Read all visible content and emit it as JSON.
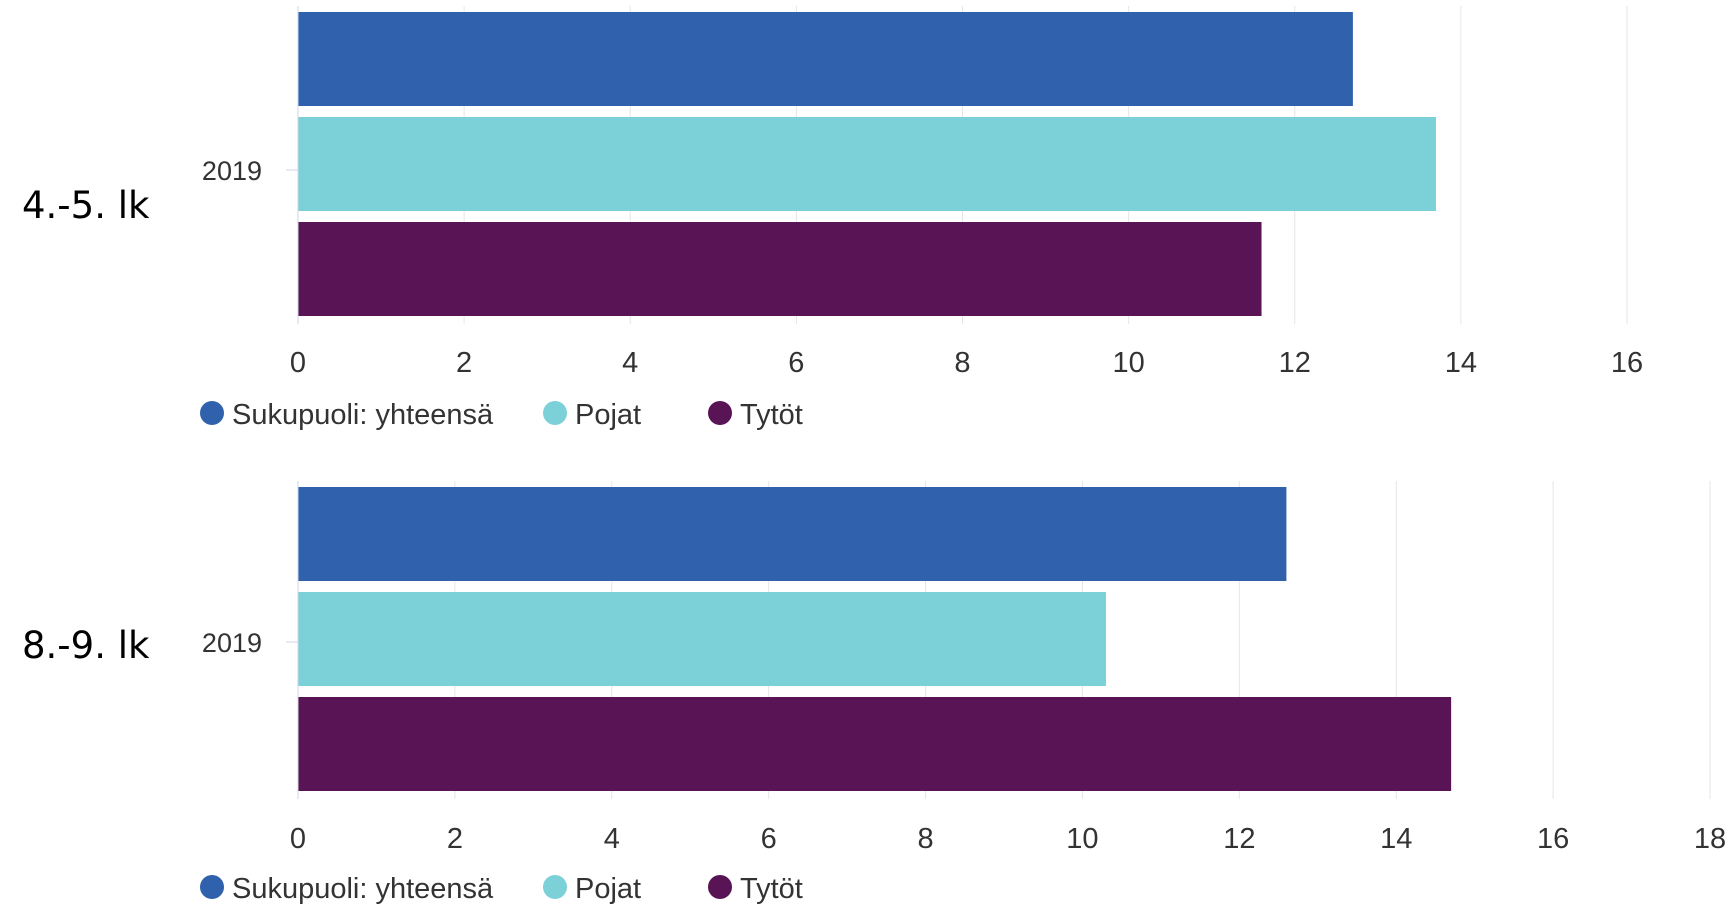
{
  "colors": {
    "total": "#3061AD",
    "boys": "#7CD1D8",
    "girls": "#581454"
  },
  "chart_data": [
    {
      "type": "bar",
      "orientation": "horizontal",
      "group_label": "4.-5. lk",
      "categories": [
        "2019"
      ],
      "series": [
        {
          "name": "Sukupuoli: yhteensä",
          "values": [
            12.7
          ],
          "color": "#3061AD"
        },
        {
          "name": "Pojat",
          "values": [
            13.7
          ],
          "color": "#7CD1D8"
        },
        {
          "name": "Tytöt",
          "values": [
            11.6
          ],
          "color": "#581454"
        }
      ],
      "xlim": [
        0,
        16
      ],
      "xticks": [
        0,
        2,
        4,
        6,
        8,
        10,
        12,
        14,
        16
      ],
      "grid": true,
      "legend": "bottom-left"
    },
    {
      "type": "bar",
      "orientation": "horizontal",
      "group_label": "8.-9. lk",
      "categories": [
        "2019"
      ],
      "series": [
        {
          "name": "Sukupuoli: yhteensä",
          "values": [
            12.6
          ],
          "color": "#3061AD"
        },
        {
          "name": "Pojat",
          "values": [
            10.3
          ],
          "color": "#7CD1D8"
        },
        {
          "name": "Tytöt",
          "values": [
            14.7
          ],
          "color": "#581454"
        }
      ],
      "xlim": [
        0,
        18
      ],
      "xticks": [
        0,
        2,
        4,
        6,
        8,
        10,
        12,
        14,
        16,
        18
      ],
      "grid": true,
      "legend": "bottom-left"
    }
  ]
}
